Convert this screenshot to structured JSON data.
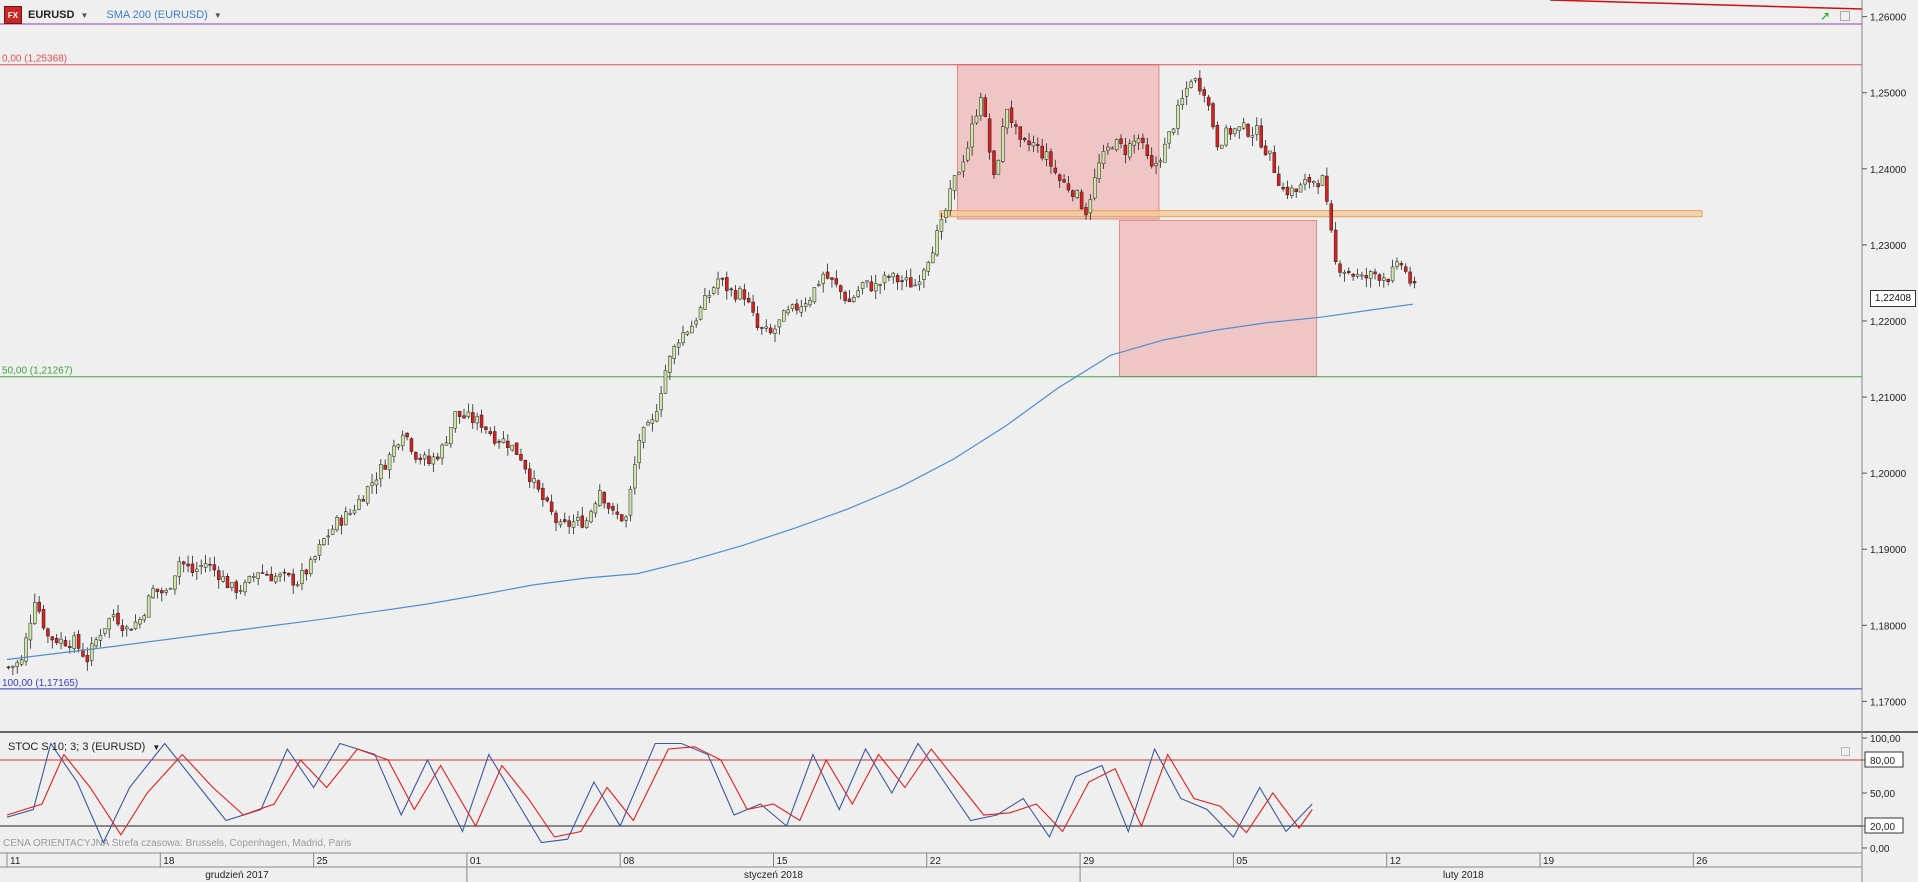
{
  "header": {
    "symbol": "EURUSD",
    "logo_text": "FX",
    "indicator": "SMA 200 (EURUSD)"
  },
  "stoch_panel": {
    "label": "STOC S 10; 3; 3 (EURUSD)"
  },
  "footer": {
    "timezone_note": "CENA ORIENTACYJNA    Strefa czasowa: Brussels, Copenhagen, Madrid, Paris",
    "months": [
      "grudzień 2017",
      "styczeń 2018",
      "luty 2018"
    ]
  },
  "colors": {
    "background": "#efefef",
    "up_candle": "#cfe6a6",
    "down_candle": "#d92020",
    "sma_line": "#4f8fd0",
    "fib_0": "#e05050",
    "fib_50": "#40a040",
    "fib_100": "#3040c0",
    "supply_zone": "#f1b3b3",
    "support_band": "#f5c896",
    "stoch_k": "#3a5a9a",
    "stoch_d": "#e02020"
  },
  "chart_data": [
    {
      "type": "candlestick",
      "symbol": "EURUSD",
      "ylim": [
        1.1665,
        1.2614
      ],
      "y_ticks": [
        "1,17000",
        "1,18000",
        "1,19000",
        "1,20000",
        "1,21000",
        "1,22000",
        "1,23000",
        "1,24000",
        "1,25000",
        "1,26000"
      ],
      "x_ticks": [
        "11",
        "18",
        "25",
        "01",
        "08",
        "15",
        "22",
        "29",
        "05",
        "12",
        "19",
        "26"
      ],
      "last_price": "1,22408",
      "fib_levels": [
        {
          "label": "0,00 (1,25368)",
          "value": 1.25368
        },
        {
          "label": "50,00 (1,21267)",
          "value": 1.21267
        },
        {
          "label": "100,00 (1,17165)",
          "value": 1.17165
        }
      ],
      "close_path": [
        [
          0,
          1.1745
        ],
        [
          3,
          1.1752
        ],
        [
          6,
          1.1837
        ],
        [
          9,
          1.1785
        ],
        [
          12,
          1.178
        ],
        [
          15,
          1.1778
        ],
        [
          18,
          1.1756
        ],
        [
          21,
          1.1792
        ],
        [
          24,
          1.1815
        ],
        [
          27,
          1.1795
        ],
        [
          30,
          1.1808
        ],
        [
          33,
          1.1846
        ],
        [
          36,
          1.1842
        ],
        [
          39,
          1.1885
        ],
        [
          42,
          1.187
        ],
        [
          45,
          1.1882
        ],
        [
          48,
          1.1868
        ],
        [
          51,
          1.1848
        ],
        [
          54,
          1.185
        ],
        [
          57,
          1.1872
        ],
        [
          60,
          1.1865
        ],
        [
          63,
          1.1862
        ],
        [
          66,
          1.1858
        ],
        [
          69,
          1.1878
        ],
        [
          72,
          1.1912
        ],
        [
          75,
          1.1935
        ],
        [
          78,
          1.1948
        ],
        [
          81,
          1.1972
        ],
        [
          84,
          1.1997
        ],
        [
          87,
          1.2022
        ],
        [
          90,
          1.2058
        ],
        [
          93,
          1.2025
        ],
        [
          96,
          1.2013
        ],
        [
          99,
          1.2032
        ],
        [
          102,
          1.2077
        ],
        [
          105,
          1.2072
        ],
        [
          108,
          1.2066
        ],
        [
          111,
          1.2048
        ],
        [
          114,
          1.204
        ],
        [
          117,
          1.2022
        ],
        [
          120,
          1.1985
        ],
        [
          123,
          1.1955
        ],
        [
          126,
          1.1928
        ],
        [
          129,
          1.1935
        ],
        [
          132,
          1.1938
        ],
        [
          135,
          1.198
        ],
        [
          138,
          1.1945
        ],
        [
          141,
          1.194
        ],
        [
          144,
          1.2045
        ],
        [
          147,
          1.2065
        ],
        [
          150,
          1.2135
        ],
        [
          153,
          1.2178
        ],
        [
          156,
          1.2195
        ],
        [
          159,
          1.2225
        ],
        [
          162,
          1.2255
        ],
        [
          165,
          1.2238
        ],
        [
          168,
          1.2235
        ],
        [
          171,
          1.219
        ],
        [
          174,
          1.2182
        ],
        [
          177,
          1.2205
        ],
        [
          180,
          1.2218
        ],
        [
          183,
          1.2232
        ],
        [
          186,
          1.2262
        ],
        [
          189,
          1.2245
        ],
        [
          192,
          1.2225
        ],
        [
          195,
          1.2248
        ],
        [
          198,
          1.2245
        ],
        [
          201,
          1.2258
        ],
        [
          204,
          1.2252
        ],
        [
          207,
          1.2248
        ],
        [
          210,
          1.2285
        ],
        [
          213,
          1.2325
        ],
        [
          216,
          1.2385
        ],
        [
          219,
          1.243
        ],
        [
          222,
          1.25
        ],
        [
          225,
          1.2385
        ],
        [
          228,
          1.2482
        ],
        [
          231,
          1.243
        ],
        [
          234,
          1.2432
        ],
        [
          237,
          1.2415
        ],
        [
          240,
          1.2385
        ],
        [
          243,
          1.2372
        ],
        [
          246,
          1.2345
        ],
        [
          249,
          1.2405
        ],
        [
          252,
          1.2435
        ],
        [
          255,
          1.2425
        ],
        [
          258,
          1.244
        ],
        [
          261,
          1.2398
        ],
        [
          264,
          1.2428
        ],
        [
          267,
          1.2475
        ],
        [
          270,
          1.252
        ],
        [
          273,
          1.2505
        ],
        [
          276,
          1.2435
        ],
        [
          279,
          1.245
        ],
        [
          282,
          1.2452
        ],
        [
          285,
          1.2448
        ],
        [
          288,
          1.2415
        ],
        [
          291,
          1.2372
        ],
        [
          294,
          1.237
        ],
        [
          297,
          1.2385
        ],
        [
          300,
          1.2385
        ],
        [
          303,
          1.2275
        ],
        [
          306,
          1.2265
        ],
        [
          309,
          1.2255
        ],
        [
          312,
          1.2262
        ],
        [
          315,
          1.2258
        ],
        [
          318,
          1.2275
        ],
        [
          321,
          1.2241
        ]
      ],
      "sma_200": [
        [
          0,
          1.1755
        ],
        [
          24,
          1.1772
        ],
        [
          48,
          1.179
        ],
        [
          72,
          1.1808
        ],
        [
          96,
          1.1828
        ],
        [
          108,
          1.184
        ],
        [
          120,
          1.1853
        ],
        [
          132,
          1.1862
        ],
        [
          144,
          1.1868
        ],
        [
          156,
          1.1885
        ],
        [
          168,
          1.1905
        ],
        [
          180,
          1.1928
        ],
        [
          192,
          1.1953
        ],
        [
          204,
          1.1982
        ],
        [
          216,
          1.2018
        ],
        [
          228,
          1.2062
        ],
        [
          240,
          1.2112
        ],
        [
          252,
          1.2155
        ],
        [
          264,
          1.2175
        ],
        [
          276,
          1.2188
        ],
        [
          288,
          1.2198
        ],
        [
          300,
          1.2205
        ],
        [
          312,
          1.2215
        ],
        [
          321,
          1.2222
        ]
      ],
      "zones": [
        {
          "name": "supply-zone",
          "from_bar": 217,
          "to_bar": 263,
          "high": 1.25368,
          "low": 1.2334
        },
        {
          "name": "projection-zone",
          "from_bar": 254,
          "to_bar": 299,
          "high": 1.2332,
          "low": 1.2127
        },
        {
          "name": "support-band",
          "from_bar": 213,
          "to_bar": 387,
          "high": 1.2345,
          "low": 1.2337
        }
      ],
      "time_span_bars": 392
    },
    {
      "type": "line",
      "name": "STOC S 10; 3; 3 (EURUSD)",
      "ylim": [
        0,
        100
      ],
      "y_ticks": [
        "100,00",
        "80,00",
        "50,00",
        "20,00",
        "0,00"
      ],
      "levels": [
        80,
        20
      ],
      "series": [
        {
          "name": "%K",
          "points": [
            [
              0,
              28
            ],
            [
              6,
              35
            ],
            [
              10,
              95
            ],
            [
              16,
              60
            ],
            [
              22,
              5
            ],
            [
              28,
              55
            ],
            [
              36,
              95
            ],
            [
              44,
              55
            ],
            [
              50,
              25
            ],
            [
              58,
              35
            ],
            [
              64,
              90
            ],
            [
              70,
              55
            ],
            [
              76,
              95
            ],
            [
              84,
              85
            ],
            [
              90,
              30
            ],
            [
              96,
              80
            ],
            [
              104,
              15
            ],
            [
              110,
              85
            ],
            [
              116,
              45
            ],
            [
              122,
              5
            ],
            [
              128,
              8
            ],
            [
              134,
              60
            ],
            [
              140,
              20
            ],
            [
              148,
              95
            ],
            [
              154,
              95
            ],
            [
              160,
              85
            ],
            [
              166,
              30
            ],
            [
              172,
              40
            ],
            [
              178,
              20
            ],
            [
              184,
              85
            ],
            [
              190,
              35
            ],
            [
              196,
              90
            ],
            [
              202,
              50
            ],
            [
              208,
              95
            ],
            [
              214,
              60
            ],
            [
              220,
              25
            ],
            [
              226,
              30
            ],
            [
              232,
              45
            ],
            [
              238,
              10
            ],
            [
              244,
              65
            ],
            [
              250,
              75
            ],
            [
              256,
              15
            ],
            [
              262,
              90
            ],
            [
              268,
              45
            ],
            [
              274,
              35
            ],
            [
              280,
              10
            ],
            [
              286,
              55
            ],
            [
              292,
              15
            ],
            [
              298,
              40
            ]
          ]
        },
        {
          "name": "%D",
          "points": [
            [
              0,
              30
            ],
            [
              8,
              40
            ],
            [
              13,
              85
            ],
            [
              19,
              55
            ],
            [
              26,
              12
            ],
            [
              32,
              50
            ],
            [
              40,
              85
            ],
            [
              47,
              55
            ],
            [
              54,
              30
            ],
            [
              61,
              40
            ],
            [
              67,
              80
            ],
            [
              73,
              55
            ],
            [
              80,
              90
            ],
            [
              87,
              80
            ],
            [
              93,
              35
            ],
            [
              99,
              75
            ],
            [
              107,
              20
            ],
            [
              113,
              75
            ],
            [
              119,
              45
            ],
            [
              125,
              10
            ],
            [
              131,
              15
            ],
            [
              137,
              55
            ],
            [
              143,
              25
            ],
            [
              151,
              90
            ],
            [
              157,
              92
            ],
            [
              163,
              80
            ],
            [
              169,
              35
            ],
            [
              175,
              40
            ],
            [
              181,
              25
            ],
            [
              187,
              80
            ],
            [
              193,
              40
            ],
            [
              199,
              85
            ],
            [
              205,
              55
            ],
            [
              211,
              90
            ],
            [
              217,
              60
            ],
            [
              223,
              30
            ],
            [
              229,
              32
            ],
            [
              235,
              40
            ],
            [
              241,
              15
            ],
            [
              247,
              60
            ],
            [
              253,
              72
            ],
            [
              259,
              20
            ],
            [
              265,
              85
            ],
            [
              271,
              45
            ],
            [
              277,
              38
            ],
            [
              283,
              14
            ],
            [
              289,
              50
            ],
            [
              295,
              18
            ],
            [
              298,
              35
            ]
          ]
        }
      ]
    }
  ]
}
